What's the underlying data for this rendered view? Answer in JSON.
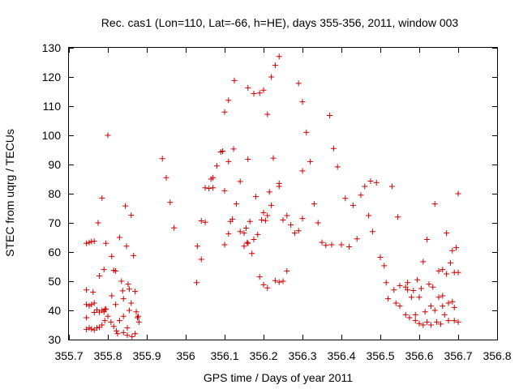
{
  "chart_data": {
    "type": "scatter",
    "title": "Rec. cas1 (Lon=110, Lat=-66, h=HE), days 355-356, 2011, window 003",
    "xlabel": "GPS time / Days of year 2011",
    "ylabel": "STEC from uqrg / TECUs",
    "xlim": [
      355.7,
      356.8
    ],
    "ylim": [
      30,
      130
    ],
    "xticks": [
      "355.7",
      "355.8",
      "355.9",
      "356",
      "356.1",
      "356.2",
      "356.3",
      "356.4",
      "356.5",
      "356.6",
      "356.7",
      "356.8"
    ],
    "yticks": [
      "30",
      "40",
      "50",
      "60",
      "70",
      "80",
      "90",
      "100",
      "110",
      "120",
      "130"
    ],
    "grid": false,
    "legend": "none",
    "marker": "+",
    "color": "#cc0000",
    "series": [
      {
        "points": [
          [
            355.745,
            63.0
          ],
          [
            355.752,
            63.3
          ],
          [
            355.758,
            63.6
          ],
          [
            355.765,
            63.7
          ],
          [
            355.745,
            47.0
          ],
          [
            355.762,
            46.3
          ],
          [
            355.745,
            42.0
          ],
          [
            355.752,
            41.6
          ],
          [
            355.758,
            42.0
          ],
          [
            355.765,
            42.5
          ],
          [
            355.745,
            37.5
          ],
          [
            355.765,
            39.3
          ],
          [
            355.772,
            40.2
          ],
          [
            355.778,
            39.4
          ],
          [
            355.785,
            40.0
          ],
          [
            355.792,
            40.3
          ],
          [
            355.745,
            33.5
          ],
          [
            355.752,
            34.0
          ],
          [
            355.758,
            33.6
          ],
          [
            355.765,
            33.3
          ],
          [
            355.772,
            34.0
          ],
          [
            355.778,
            34.2
          ],
          [
            355.785,
            35.0
          ],
          [
            355.792,
            36.5
          ],
          [
            355.8,
            38.0
          ],
          [
            355.808,
            36.0
          ],
          [
            355.815,
            34.5
          ],
          [
            355.822,
            33.0
          ],
          [
            355.775,
            70.0
          ],
          [
            355.785,
            78.5
          ],
          [
            355.795,
            63.0
          ],
          [
            355.8,
            100.0
          ],
          [
            355.778,
            51.8
          ],
          [
            355.79,
            54.0
          ],
          [
            355.81,
            58.5
          ],
          [
            355.815,
            53.7
          ],
          [
            355.82,
            53.5
          ],
          [
            355.83,
            65.0
          ],
          [
            355.835,
            50.0
          ],
          [
            355.838,
            46.7
          ],
          [
            355.84,
            44.0
          ],
          [
            355.845,
            75.8
          ],
          [
            355.848,
            62.0
          ],
          [
            355.852,
            49.0
          ],
          [
            355.855,
            47.3
          ],
          [
            355.86,
            72.6
          ],
          [
            355.866,
            58.8
          ],
          [
            355.87,
            46.5
          ],
          [
            355.873,
            39.5
          ],
          [
            355.876,
            37.5
          ],
          [
            355.88,
            36.0
          ],
          [
            355.855,
            40.0
          ],
          [
            355.86,
            42.5
          ],
          [
            355.84,
            38.0
          ],
          [
            355.83,
            36.5
          ],
          [
            355.825,
            32.0
          ],
          [
            355.84,
            32.4
          ],
          [
            355.85,
            31.5
          ],
          [
            355.862,
            31.0
          ],
          [
            355.79,
            39.5
          ],
          [
            355.795,
            40.5
          ],
          [
            355.81,
            45.0
          ],
          [
            355.82,
            42.0
          ],
          [
            355.85,
            34.0
          ],
          [
            355.87,
            32.0
          ],
          [
            355.878,
            38.0
          ],
          [
            355.94,
            92.0
          ],
          [
            355.95,
            85.5
          ],
          [
            355.96,
            77.0
          ],
          [
            355.97,
            68.3
          ],
          [
            356.03,
            62.0
          ],
          [
            356.028,
            49.5
          ],
          [
            356.04,
            70.7
          ],
          [
            356.04,
            57.5
          ],
          [
            356.05,
            70.2
          ],
          [
            356.05,
            82.0
          ],
          [
            356.06,
            81.8
          ],
          [
            356.065,
            85.0
          ],
          [
            356.07,
            82.0
          ],
          [
            356.07,
            85.5
          ],
          [
            356.08,
            89.5
          ],
          [
            356.09,
            94.3
          ],
          [
            356.095,
            94.6
          ],
          [
            356.1,
            81.0
          ],
          [
            356.1,
            62.5
          ],
          [
            356.1,
            108.0
          ],
          [
            356.11,
            91.0
          ],
          [
            356.11,
            112.0
          ],
          [
            356.11,
            66.3
          ],
          [
            356.115,
            70.5
          ],
          [
            356.12,
            71.3
          ],
          [
            356.123,
            95.3
          ],
          [
            356.125,
            118.8
          ],
          [
            356.13,
            76.5
          ],
          [
            356.14,
            67.0
          ],
          [
            356.14,
            84.2
          ],
          [
            356.15,
            66.5
          ],
          [
            356.15,
            62.0
          ],
          [
            356.155,
            68.2
          ],
          [
            356.158,
            63.3
          ],
          [
            356.16,
            63.0
          ],
          [
            356.16,
            91.8
          ],
          [
            356.16,
            116.3
          ],
          [
            356.165,
            70.5
          ],
          [
            356.175,
            114.3
          ],
          [
            356.17,
            59.5
          ],
          [
            356.175,
            64.3
          ],
          [
            356.18,
            79.0
          ],
          [
            356.185,
            66.0
          ],
          [
            356.19,
            114.5
          ],
          [
            356.195,
            71.0
          ],
          [
            356.2,
            115.5
          ],
          [
            356.2,
            73.5
          ],
          [
            356.205,
            70.8
          ],
          [
            356.21,
            72.5
          ],
          [
            356.21,
            107.2
          ],
          [
            356.215,
            80.6
          ],
          [
            356.22,
            120.0
          ],
          [
            356.19,
            51.5
          ],
          [
            356.2,
            48.8
          ],
          [
            356.21,
            47.7
          ],
          [
            356.22,
            76.0
          ],
          [
            356.225,
            92.2
          ],
          [
            356.23,
            124.0
          ],
          [
            356.23,
            50.2
          ],
          [
            356.24,
            49.7
          ],
          [
            356.24,
            82.5
          ],
          [
            356.24,
            83.5
          ],
          [
            356.24,
            127.0
          ],
          [
            356.25,
            71.0
          ],
          [
            356.25,
            50.0
          ],
          [
            356.26,
            72.5
          ],
          [
            356.26,
            53.5
          ],
          [
            356.27,
            69.3
          ],
          [
            356.28,
            66.5
          ],
          [
            356.29,
            67.3
          ],
          [
            356.29,
            117.8
          ],
          [
            356.3,
            111.5
          ],
          [
            356.3,
            87.8
          ],
          [
            356.3,
            71.5
          ],
          [
            356.31,
            101.0
          ],
          [
            356.32,
            91.0
          ],
          [
            356.33,
            76.5
          ],
          [
            356.34,
            70.0
          ],
          [
            356.35,
            63.3
          ],
          [
            356.36,
            62.3
          ],
          [
            356.37,
            106.8
          ],
          [
            356.375,
            62.5
          ],
          [
            356.38,
            95.5
          ],
          [
            356.39,
            89.2
          ],
          [
            356.4,
            62.5
          ],
          [
            356.41,
            78.4
          ],
          [
            356.42,
            61.8
          ],
          [
            356.43,
            76.0
          ],
          [
            356.44,
            64.5
          ],
          [
            356.45,
            79.5
          ],
          [
            356.46,
            82.5
          ],
          [
            356.47,
            72.5
          ],
          [
            356.475,
            84.3
          ],
          [
            356.48,
            67.0
          ],
          [
            356.49,
            83.8
          ],
          [
            356.5,
            58.2
          ],
          [
            356.51,
            55.3
          ],
          [
            356.515,
            49.5
          ],
          [
            356.52,
            44.0
          ],
          [
            356.53,
            82.5
          ],
          [
            356.535,
            47.0
          ],
          [
            356.54,
            42.5
          ],
          [
            356.545,
            72.0
          ],
          [
            356.55,
            41.5
          ],
          [
            356.55,
            48.5
          ],
          [
            356.565,
            48.0
          ],
          [
            356.565,
            38.5
          ],
          [
            356.57,
            47.0
          ],
          [
            356.57,
            49.5
          ],
          [
            356.575,
            37.5
          ],
          [
            356.58,
            44.5
          ],
          [
            356.585,
            46.8
          ],
          [
            356.59,
            36.5
          ],
          [
            356.59,
            38.5
          ],
          [
            356.595,
            50.5
          ],
          [
            356.6,
            35.5
          ],
          [
            356.6,
            44.5
          ],
          [
            356.605,
            47.5
          ],
          [
            356.61,
            56.7
          ],
          [
            356.61,
            35.0
          ],
          [
            356.615,
            39.5
          ],
          [
            356.62,
            64.3
          ],
          [
            356.62,
            36.0
          ],
          [
            356.625,
            49.0
          ],
          [
            356.63,
            41.5
          ],
          [
            356.63,
            35.0
          ],
          [
            356.635,
            48.0
          ],
          [
            356.64,
            76.5
          ],
          [
            356.64,
            40.0
          ],
          [
            356.645,
            36.0
          ],
          [
            356.65,
            53.5
          ],
          [
            356.65,
            44.5
          ],
          [
            356.655,
            35.3
          ],
          [
            356.66,
            54.0
          ],
          [
            356.66,
            45.0
          ],
          [
            356.665,
            38.5
          ],
          [
            356.67,
            66.5
          ],
          [
            356.67,
            52.5
          ],
          [
            356.675,
            42.5
          ],
          [
            356.675,
            36.5
          ],
          [
            356.68,
            56.3
          ],
          [
            356.685,
            43.0
          ],
          [
            356.685,
            60.5
          ],
          [
            356.69,
            53.0
          ],
          [
            356.69,
            41.0
          ],
          [
            356.695,
            61.5
          ],
          [
            356.7,
            36.0
          ],
          [
            356.7,
            53.0
          ],
          [
            356.7,
            80.0
          ],
          [
            356.69,
            36.5
          ],
          [
            356.66,
            41.5
          ]
        ]
      }
    ]
  }
}
